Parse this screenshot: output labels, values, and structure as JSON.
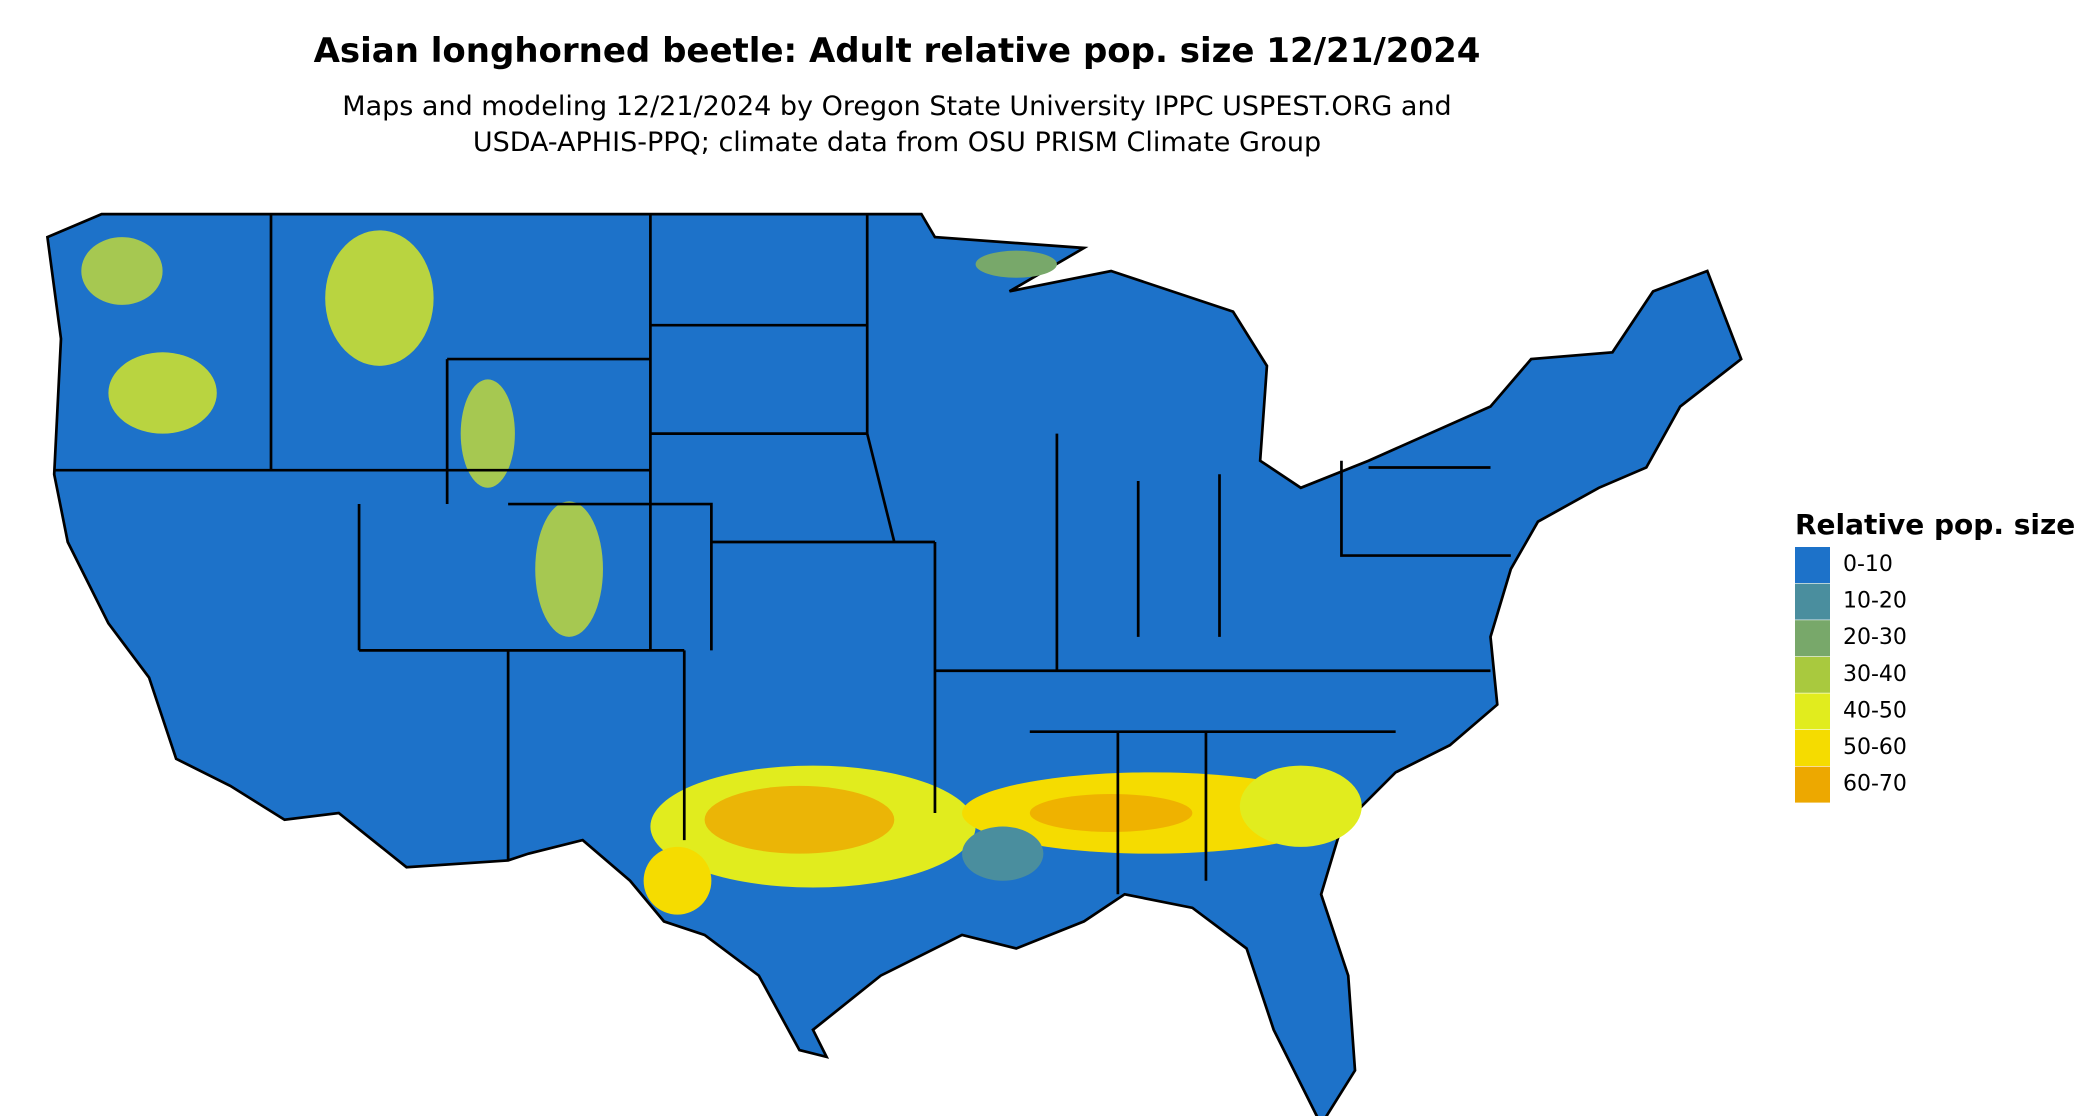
{
  "title": "Asian longhorned beetle: Adult relative pop. size 12/21/2024",
  "subtitle": [
    "Maps and modeling 12/21/2024 by Oregon State University IPPC USPEST.ORG and",
    "USDA-APHIS-PPQ; climate data from OSU PRISM Climate Group"
  ],
  "legend": {
    "title": "Relative pop. size",
    "items": [
      {
        "label": "0-10",
        "color": "#1d72c9"
      },
      {
        "label": "10-20",
        "color": "#4a8e9e"
      },
      {
        "label": "20-30",
        "color": "#78a86a"
      },
      {
        "label": "30-40",
        "color": "#a9c93e"
      },
      {
        "label": "40-50",
        "color": "#e1ec1e"
      },
      {
        "label": "50-60",
        "color": "#f5dc00"
      },
      {
        "label": "60-70",
        "color": "#eda800"
      }
    ]
  }
}
